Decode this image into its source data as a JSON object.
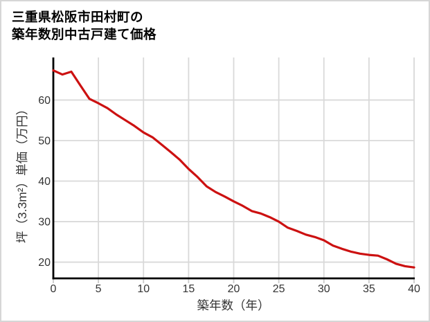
{
  "title": {
    "line1": "三重県松阪市田村町の",
    "line2": "築年数別中古戸建て価格"
  },
  "chart_data": {
    "type": "line",
    "title": "三重県松阪市田村町の築年数別中古戸建て価格",
    "xlabel": "築年数（年）",
    "ylabel": "坪（3.3m²）単価（万円）",
    "x": [
      0,
      1,
      2,
      3,
      4,
      5,
      6,
      7,
      8,
      9,
      10,
      11,
      12,
      13,
      14,
      15,
      16,
      17,
      18,
      19,
      20,
      21,
      22,
      23,
      24,
      25,
      26,
      27,
      28,
      29,
      30,
      31,
      32,
      33,
      34,
      35,
      36,
      37,
      38,
      39,
      40
    ],
    "values": [
      67.3,
      66.3,
      67.0,
      63.6,
      60.3,
      59.2,
      58.0,
      56.4,
      55.0,
      53.6,
      52.0,
      50.8,
      49.0,
      47.2,
      45.3,
      43.0,
      41.0,
      38.7,
      37.3,
      36.2,
      35.0,
      33.9,
      32.6,
      32.0,
      31.1,
      30.0,
      28.5,
      27.7,
      26.8,
      26.2,
      25.4,
      24.1,
      23.3,
      22.6,
      22.1,
      21.8,
      21.6,
      20.7,
      19.6,
      19.0,
      18.7
    ],
    "series_name": "坪単価（万円）",
    "xlim": [
      0,
      40
    ],
    "ylim": [
      16,
      70.5
    ],
    "x_ticks": [
      0,
      5,
      10,
      15,
      20,
      25,
      30,
      35,
      40
    ],
    "y_ticks": [
      20,
      30,
      40,
      50,
      60
    ],
    "grid": true,
    "legend_position": "none",
    "line_color": "#cc1111",
    "grid_color": "#d9d9d9",
    "tick_color": "#c9c9c9",
    "axis_color": "#000000",
    "tick_label_color": "#333333"
  }
}
